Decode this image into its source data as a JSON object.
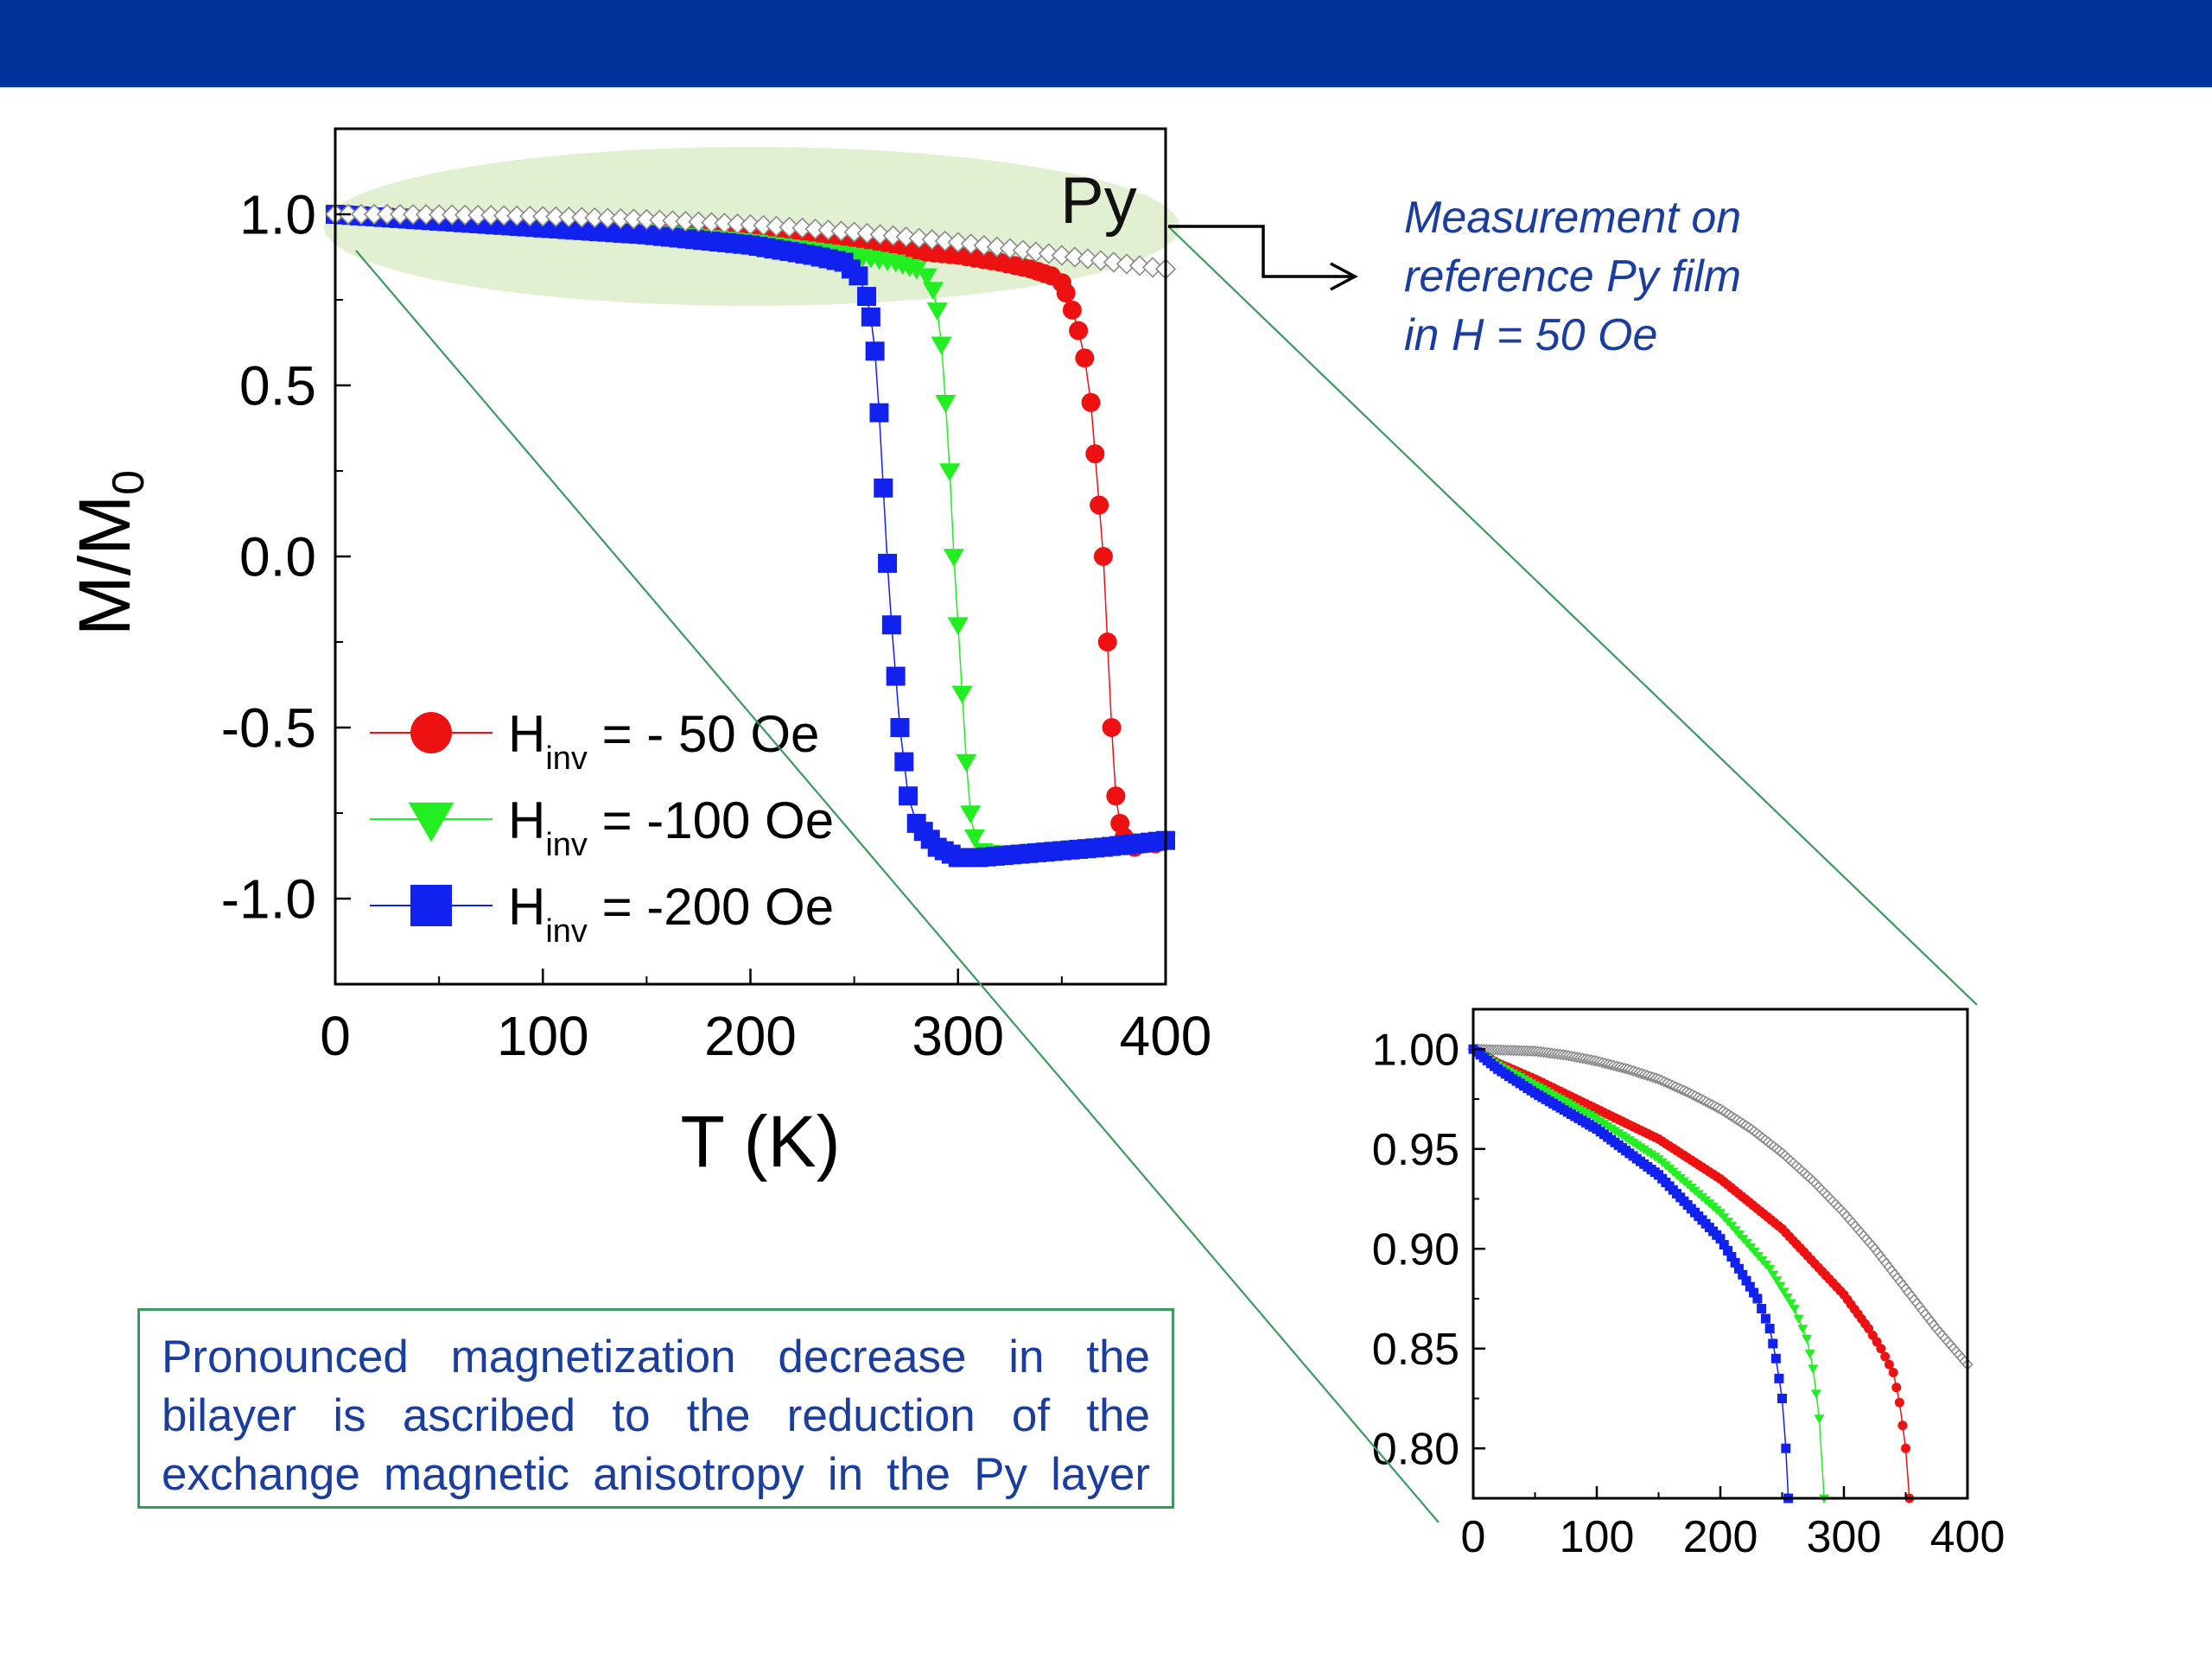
{
  "note": {
    "lines": [
      "Measurement on",
      "reference Py film",
      "in H = 50 Oe"
    ]
  },
  "conclusion": {
    "lines": [
      "Pronounced magnetization decrease in the",
      "bilayer is ascribed to the reduction of the",
      "exchange magnetic anisotropy in the Py layer"
    ]
  },
  "colors": {
    "header_bar": "#003399",
    "red": "#ee1111",
    "green": "#22ee22",
    "blue": "#1122ee",
    "py_open": "#8a8a8a",
    "highlight": "#e2f0d2",
    "connector": "#3c9a5f",
    "text_blue": "#1a3d9e"
  },
  "chart_data": [
    {
      "type": "scatter",
      "xlabel": "T (K)",
      "ylabel": "M/M",
      "ylabel_sub": "0",
      "xlim": [
        0,
        400
      ],
      "ylim": [
        -1.25,
        1.25
      ],
      "xticks": [
        "0",
        "100",
        "200",
        "300",
        "400"
      ],
      "yticks": [
        "1.0",
        "0.5",
        "0.0",
        "-0.5",
        "-1.0"
      ],
      "annotation": "Py",
      "legend": [
        {
          "pre": "H",
          "sub": "inv",
          "post": " = - 50 Oe",
          "marker": "circle",
          "series": "red"
        },
        {
          "pre": "H",
          "sub": "inv",
          "post": " = -100 Oe",
          "marker": "triangle-down",
          "series": "green"
        },
        {
          "pre": "H",
          "sub": "inv",
          "post": " = -200 Oe",
          "marker": "square",
          "series": "blue"
        }
      ],
      "series": [
        {
          "name": "H inv = - 50 Oe",
          "color": "red",
          "marker": "circle",
          "x": [
            0,
            50,
            100,
            150,
            200,
            250,
            300,
            320,
            335,
            345,
            350,
            352,
            355,
            358,
            361,
            364,
            366,
            368,
            370,
            372,
            374,
            376,
            378,
            380,
            385,
            390,
            395,
            400
          ],
          "y": [
            1.0,
            0.985,
            0.97,
            0.955,
            0.935,
            0.91,
            0.88,
            0.86,
            0.84,
            0.82,
            0.8,
            0.77,
            0.72,
            0.66,
            0.58,
            0.45,
            0.3,
            0.15,
            0.0,
            -0.25,
            -0.5,
            -0.7,
            -0.78,
            -0.82,
            -0.85,
            -0.84,
            -0.84,
            -0.83
          ]
        },
        {
          "name": "H inv = -100 Oe",
          "color": "green",
          "marker": "triangle-down",
          "x": [
            0,
            50,
            100,
            150,
            200,
            250,
            270,
            280,
            285,
            288,
            290,
            292,
            294,
            296,
            298,
            300,
            302,
            304,
            306,
            308,
            312,
            320,
            340,
            360,
            380,
            400
          ],
          "y": [
            1.0,
            0.985,
            0.97,
            0.95,
            0.92,
            0.88,
            0.86,
            0.84,
            0.82,
            0.78,
            0.72,
            0.62,
            0.45,
            0.25,
            0.0,
            -0.2,
            -0.4,
            -0.6,
            -0.75,
            -0.82,
            -0.86,
            -0.87,
            -0.86,
            -0.85,
            -0.84,
            -0.83
          ]
        },
        {
          "name": "H inv = -200 Oe",
          "color": "blue",
          "marker": "square",
          "x": [
            0,
            50,
            100,
            150,
            200,
            230,
            245,
            252,
            256,
            258,
            260,
            262,
            264,
            266,
            268,
            270,
            272,
            274,
            276,
            280,
            290,
            300,
            310,
            330,
            350,
            370,
            400
          ],
          "y": [
            1.0,
            0.98,
            0.96,
            0.94,
            0.91,
            0.88,
            0.86,
            0.82,
            0.76,
            0.7,
            0.6,
            0.42,
            0.2,
            -0.02,
            -0.2,
            -0.35,
            -0.5,
            -0.6,
            -0.7,
            -0.78,
            -0.85,
            -0.88,
            -0.88,
            -0.87,
            -0.86,
            -0.85,
            -0.83
          ]
        },
        {
          "name": "Py",
          "color": "py_open",
          "marker": "open-diamond",
          "x": [
            0,
            25,
            50,
            75,
            100,
            125,
            150,
            175,
            200,
            225,
            250,
            275,
            300,
            325,
            350,
            375,
            400
          ],
          "y": [
            1.0,
            1.0,
            0.999,
            0.997,
            0.994,
            0.99,
            0.985,
            0.978,
            0.97,
            0.96,
            0.948,
            0.934,
            0.918,
            0.9,
            0.88,
            0.86,
            0.84
          ]
        }
      ]
    },
    {
      "type": "scatter",
      "xlim": [
        0,
        400
      ],
      "ylim": [
        0.775,
        1.02
      ],
      "xticks": [
        "0",
        "100",
        "200",
        "300",
        "400"
      ],
      "yticks": [
        "1.00",
        "0.95",
        "0.90",
        "0.85",
        "0.80"
      ],
      "series": [
        {
          "name": "H inv = - 50 Oe",
          "color": "red",
          "marker": "circle",
          "x": [
            0,
            20,
            50,
            100,
            150,
            200,
            250,
            300,
            320,
            330,
            340,
            345,
            350,
            353
          ],
          "y": [
            1.0,
            0.993,
            0.985,
            0.97,
            0.955,
            0.935,
            0.91,
            0.877,
            0.86,
            0.85,
            0.838,
            0.823,
            0.8,
            0.775
          ]
        },
        {
          "name": "H inv = -100 Oe",
          "color": "green",
          "marker": "triangle-down",
          "x": [
            0,
            20,
            50,
            100,
            150,
            200,
            240,
            260,
            270,
            275,
            280,
            284
          ],
          "y": [
            1.0,
            0.992,
            0.982,
            0.965,
            0.945,
            0.918,
            0.89,
            0.87,
            0.855,
            0.84,
            0.815,
            0.775
          ]
        },
        {
          "name": "H inv = -200 Oe",
          "color": "blue",
          "marker": "square",
          "x": [
            0,
            20,
            50,
            100,
            150,
            200,
            230,
            240,
            245,
            250,
            253,
            255
          ],
          "y": [
            1.0,
            0.99,
            0.978,
            0.96,
            0.937,
            0.905,
            0.875,
            0.86,
            0.845,
            0.825,
            0.8,
            0.775
          ]
        },
        {
          "name": "Py",
          "color": "py_open",
          "marker": "open-diamond",
          "x": [
            0,
            50,
            75,
            100,
            125,
            150,
            175,
            200,
            225,
            250,
            275,
            300,
            325,
            350,
            375,
            400
          ],
          "y": [
            1.0,
            0.999,
            0.997,
            0.994,
            0.99,
            0.985,
            0.978,
            0.97,
            0.96,
            0.948,
            0.934,
            0.918,
            0.9,
            0.88,
            0.86,
            0.842
          ]
        }
      ]
    }
  ]
}
